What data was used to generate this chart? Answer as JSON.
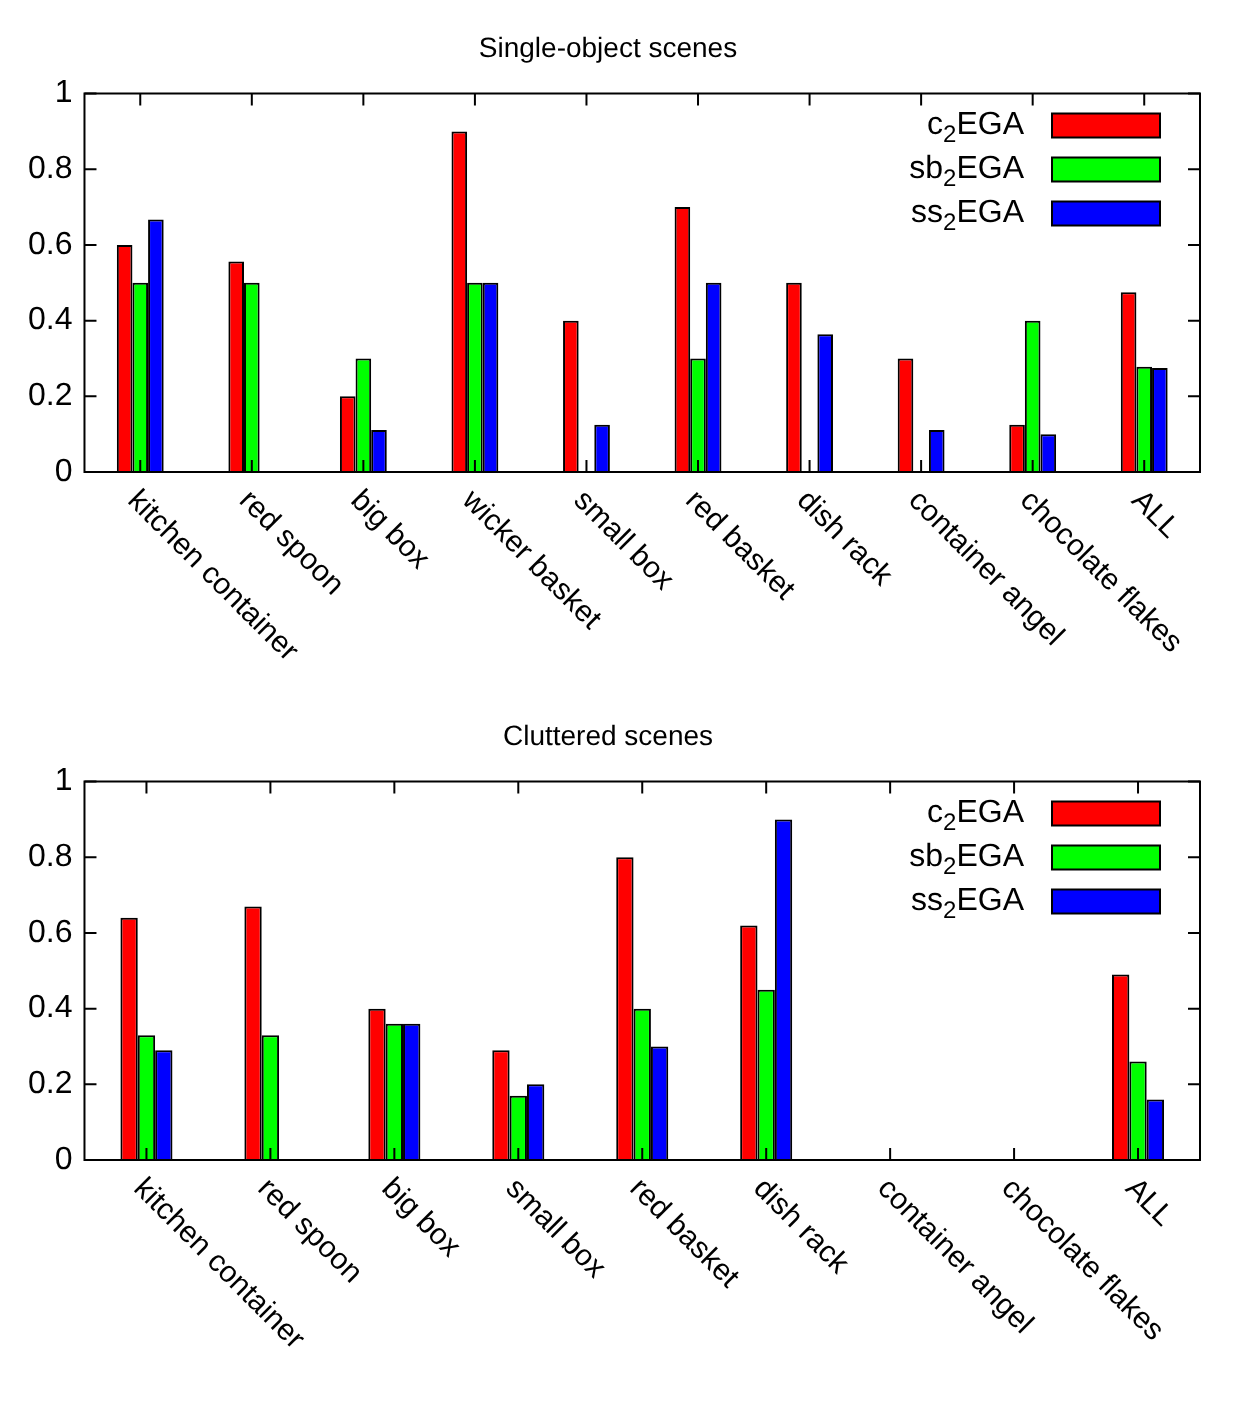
{
  "chart_data": [
    {
      "type": "bar",
      "title": "Single-object scenes",
      "categories": [
        "kitchen container",
        "red spoon",
        "big box",
        "wicker basket",
        "small box",
        "red basket",
        "dish rack",
        "container angel",
        "chocolate flakes",
        "ALL"
      ],
      "series": [
        {
          "name": "c$_{2}$EGA",
          "color": "#ff0000",
          "values": [
            0.6,
            0.556,
            0.2,
            0.9,
            0.4,
            0.7,
            0.5,
            0.3,
            0.125,
            0.475
          ]
        },
        {
          "name": "sb$_{2}$EGA",
          "color": "#00ff00",
          "values": [
            0.5,
            0.5,
            0.3,
            0.5,
            null,
            0.3,
            null,
            null,
            0.4,
            0.278
          ]
        },
        {
          "name": "ss$_{2}$EGA",
          "color": "#0000ff",
          "values": [
            0.667,
            null,
            0.111,
            0.5,
            0.125,
            0.5,
            0.364,
            0.111,
            0.1,
            0.275
          ]
        }
      ],
      "ylim": [
        0,
        1
      ],
      "yticks": [
        0,
        0.2,
        0.4,
        0.6,
        0.8,
        1
      ],
      "legend": "top right"
    },
    {
      "type": "bar",
      "title": "Cluttered scenes",
      "categories": [
        "kitchen container",
        "red spoon",
        "big box",
        "small box",
        "red basket",
        "dish rack",
        "container angel",
        "chocolate flakes",
        "ALL"
      ],
      "series": [
        {
          "name": "c$_{2}$EGA",
          "color": "#ff0000",
          "values": [
            0.64,
            0.67,
            0.4,
            0.29,
            0.8,
            0.62,
            null,
            null,
            0.49
          ]
        },
        {
          "name": "sb$_{2}$EGA",
          "color": "#00ff00",
          "values": [
            0.33,
            0.33,
            0.36,
            0.17,
            0.4,
            0.45,
            null,
            null,
            0.26
          ]
        },
        {
          "name": "ss$_{2}$EGA",
          "color": "#0000ff",
          "values": [
            0.29,
            null,
            0.36,
            0.2,
            0.3,
            0.9,
            null,
            null,
            0.16
          ]
        }
      ],
      "ylim": [
        0,
        1
      ],
      "yticks": [
        0,
        0.2,
        0.4,
        0.6,
        0.8,
        1
      ],
      "legend": "top right"
    }
  ]
}
